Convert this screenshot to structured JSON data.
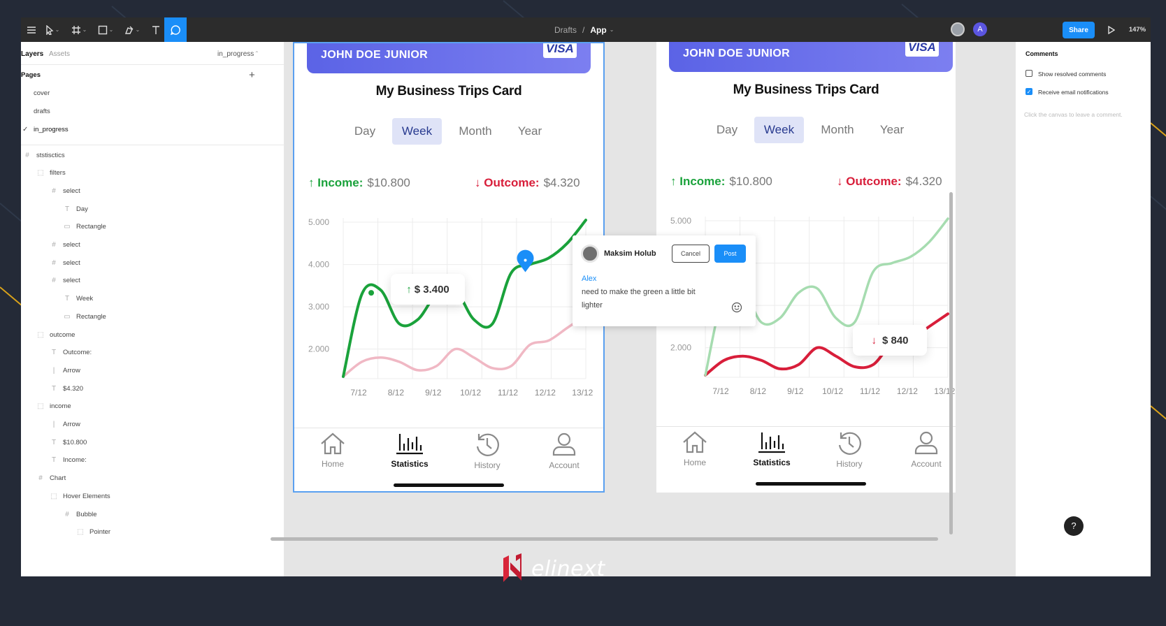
{
  "toolbar": {
    "breadcrumb_parent": "Drafts",
    "breadcrumb_sep": "/",
    "file_name": "App",
    "share_label": "Share",
    "zoom": "147%",
    "avatar_letter": "A"
  },
  "layers_panel": {
    "tab_layers": "Layers",
    "tab_assets": "Assets",
    "current_page": "in_progress",
    "pages_header": "Pages",
    "add_symbol": "+",
    "pages": [
      "cover",
      "drafts",
      "in_progress"
    ],
    "layers": [
      "ststisctics",
      "filters",
      "select",
      "Day",
      "Rectangle",
      "select",
      "select",
      "select",
      "Week",
      "Rectangle",
      "outcome",
      "Outcome:",
      "Arrow",
      "$4.320",
      "income",
      "Arrow",
      "$10.800",
      "Income:",
      "Chart",
      "Hover Elements",
      "Bubble",
      "Pointer"
    ]
  },
  "comments_panel": {
    "title": "Comments",
    "show_resolved": "Show resolved comments",
    "email_notif": "Receive email notifications",
    "hint": "Click the canvas to leave a comment."
  },
  "frame": {
    "card_name": "JOHN DOE JUNIOR",
    "card_brand": "VISA",
    "title": "My Business Trips Card",
    "tabs": [
      "Day",
      "Week",
      "Month",
      "Year"
    ],
    "active_tab": "Week",
    "income_label": "Income:",
    "income_value": "$10.800",
    "outcome_label": "Outcome:",
    "outcome_value": "$4.320",
    "nav": [
      "Home",
      "Statistics",
      "History",
      "Account"
    ],
    "active_nav": "Statistics"
  },
  "bubbles": {
    "left": "$ 3.400",
    "right": "$ 840"
  },
  "comment": {
    "author": "Maksim Holub",
    "cancel": "Cancel",
    "post": "Post",
    "mention": "Alex",
    "text_line1": "need to make the green a little bit",
    "text_line2": "lighter"
  },
  "brand": {
    "logo_word": "elinext"
  },
  "colors": {
    "green": "#1aa23b",
    "red": "#d81e3a",
    "pink": "#f0b8c4",
    "light_green": "#a6dcb0",
    "accent": "#1a8ef8",
    "card": "#5b63e6"
  },
  "chart_data": [
    {
      "type": "line",
      "categories": [
        "7/12",
        "8/12",
        "9/12",
        "10/12",
        "11/12",
        "12/12",
        "13/12"
      ],
      "y_ticks": [
        "5.000",
        "4.000",
        "3.000",
        "2.000"
      ],
      "ylim": [
        1300,
        5100
      ],
      "series": [
        {
          "name": "Income:",
          "x": [
            7,
            7.5,
            8,
            8.5,
            9,
            9.5,
            10,
            10.5,
            11,
            11.5,
            12,
            12.5,
            13,
            13.5
          ],
          "values": [
            1350,
            3300,
            3400,
            2600,
            2700,
            3300,
            3400,
            2700,
            2600,
            3800,
            4000,
            4150,
            4500,
            5050
          ]
        },
        {
          "name": "Outcome:",
          "x": [
            7,
            7.5,
            8,
            8.5,
            9,
            9.5,
            10,
            10.5,
            11,
            11.5,
            12,
            12.5,
            13,
            13.5
          ],
          "values": [
            1350,
            1700,
            1800,
            1700,
            1500,
            1600,
            2000,
            1800,
            1550,
            1600,
            2100,
            2200,
            2500,
            2800
          ]
        }
      ]
    },
    {
      "type": "line",
      "categories": [
        "7/12",
        "8/12",
        "9/12",
        "10/12",
        "11/12",
        "12/12",
        "13/12"
      ],
      "y_ticks": [
        "5.000",
        "4.000",
        "3.000",
        "2.000"
      ],
      "ylim": [
        1300,
        5100
      ],
      "series": [
        {
          "name": "Income:",
          "x": [
            7,
            7.5,
            8,
            8.5,
            9,
            9.5,
            10,
            10.5,
            11,
            11.5,
            12,
            12.5,
            13,
            13.5
          ],
          "values": [
            1350,
            3300,
            3400,
            2600,
            2700,
            3300,
            3400,
            2700,
            2600,
            3800,
            4000,
            4150,
            4500,
            5050
          ]
        },
        {
          "name": "Outcome:",
          "x": [
            7,
            7.5,
            8,
            8.5,
            9,
            9.5,
            10,
            10.5,
            11,
            11.5,
            12,
            12.5,
            13,
            13.5
          ],
          "values": [
            1350,
            1700,
            1800,
            1700,
            1500,
            1600,
            2000,
            1800,
            1550,
            1600,
            2100,
            2200,
            2500,
            2800
          ]
        }
      ]
    }
  ]
}
